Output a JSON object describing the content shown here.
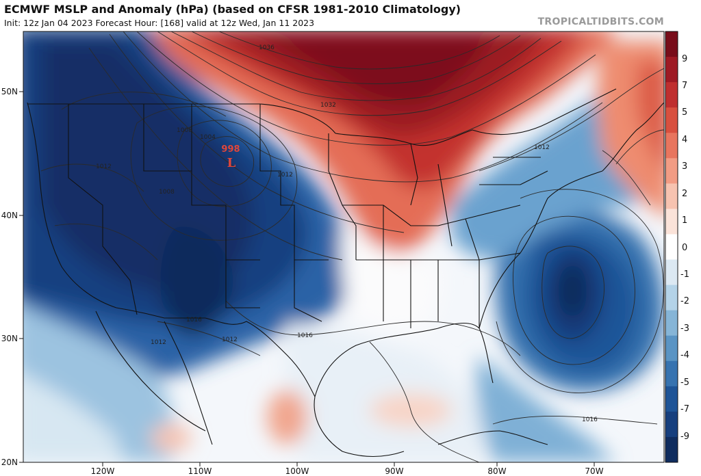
{
  "header": {
    "title": "ECMWF MSLP and Anomaly (hPa) (based on CFSR 1981-2010 Climatology)",
    "subtitle": "Init: 12z Jan 04 2023   Forecast Hour: [168]   valid at 12z Wed, Jan 11 2023",
    "brand": "TROPICALTIDBITS.COM"
  },
  "map": {
    "lat_labels": [
      "50N",
      "40N",
      "30N",
      "20N"
    ],
    "lon_labels": [
      "120W",
      "110W",
      "100W",
      "90W",
      "80W",
      "70W"
    ],
    "low_center": {
      "pressure": "998",
      "symbol": "L"
    },
    "contour_labels": [
      "1036",
      "1032",
      "1012",
      "1008",
      "1004",
      "1012",
      "1008",
      "1012",
      "1016",
      "1012",
      "1016",
      "1012",
      "1016"
    ]
  },
  "colorbar": {
    "labels": [
      "9",
      "7",
      "5",
      "4",
      "3",
      "2",
      "1",
      "0",
      "-1",
      "-2",
      "-3",
      "-4",
      "-5",
      "-7",
      "-9"
    ],
    "colors": [
      "#780d1a",
      "#9e1a24",
      "#bf2f2f",
      "#d8503f",
      "#e8755e",
      "#f29c84",
      "#f7c3b0",
      "#fbe3d9",
      "#ffffff",
      "#dce9f3",
      "#b4d3e8",
      "#86b5d7",
      "#5a94c4",
      "#3773b0",
      "#1e5497",
      "#163f7e",
      "#0f2c5e"
    ]
  }
}
